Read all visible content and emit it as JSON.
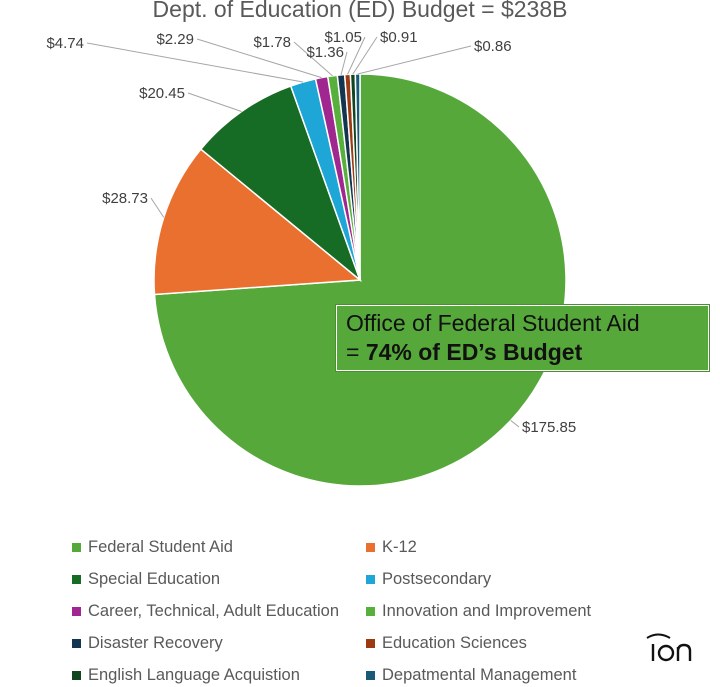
{
  "chart_data": {
    "type": "pie",
    "title": "Dept. of Education (ED) Budget = $238B",
    "categories": [
      "Federal Student Aid",
      "K-12",
      "Special Education",
      "Postsecondary",
      "Career, Technical, Adult Education",
      "Innovation and Improvement",
      "Disaster Recovery",
      "Education Sciences",
      "English Language Acquistion",
      "Depatmental Management"
    ],
    "values": [
      175.85,
      28.73,
      20.45,
      4.74,
      2.29,
      1.78,
      1.36,
      1.05,
      0.91,
      0.86
    ],
    "data_labels": [
      "$175.85",
      "$28.73",
      "$20.45",
      "$4.74",
      "$2.29",
      "$1.78",
      "$1.36",
      "$1.05",
      "$0.91",
      "$0.86"
    ],
    "colors": [
      "#56a83a",
      "#ea7030",
      "#176c25",
      "#1ea6d6",
      "#a0278f",
      "#58b03c",
      "#12364f",
      "#9c3a12",
      "#0f4620",
      "#185a78"
    ],
    "legend_placement": "bottom"
  },
  "callout": {
    "line1": "Office of Federal Student Aid",
    "line2_prefix": "= ",
    "line2_bold": "74% of ED’s Budget"
  },
  "logo": {
    "icon": "ion-logo-icon"
  }
}
